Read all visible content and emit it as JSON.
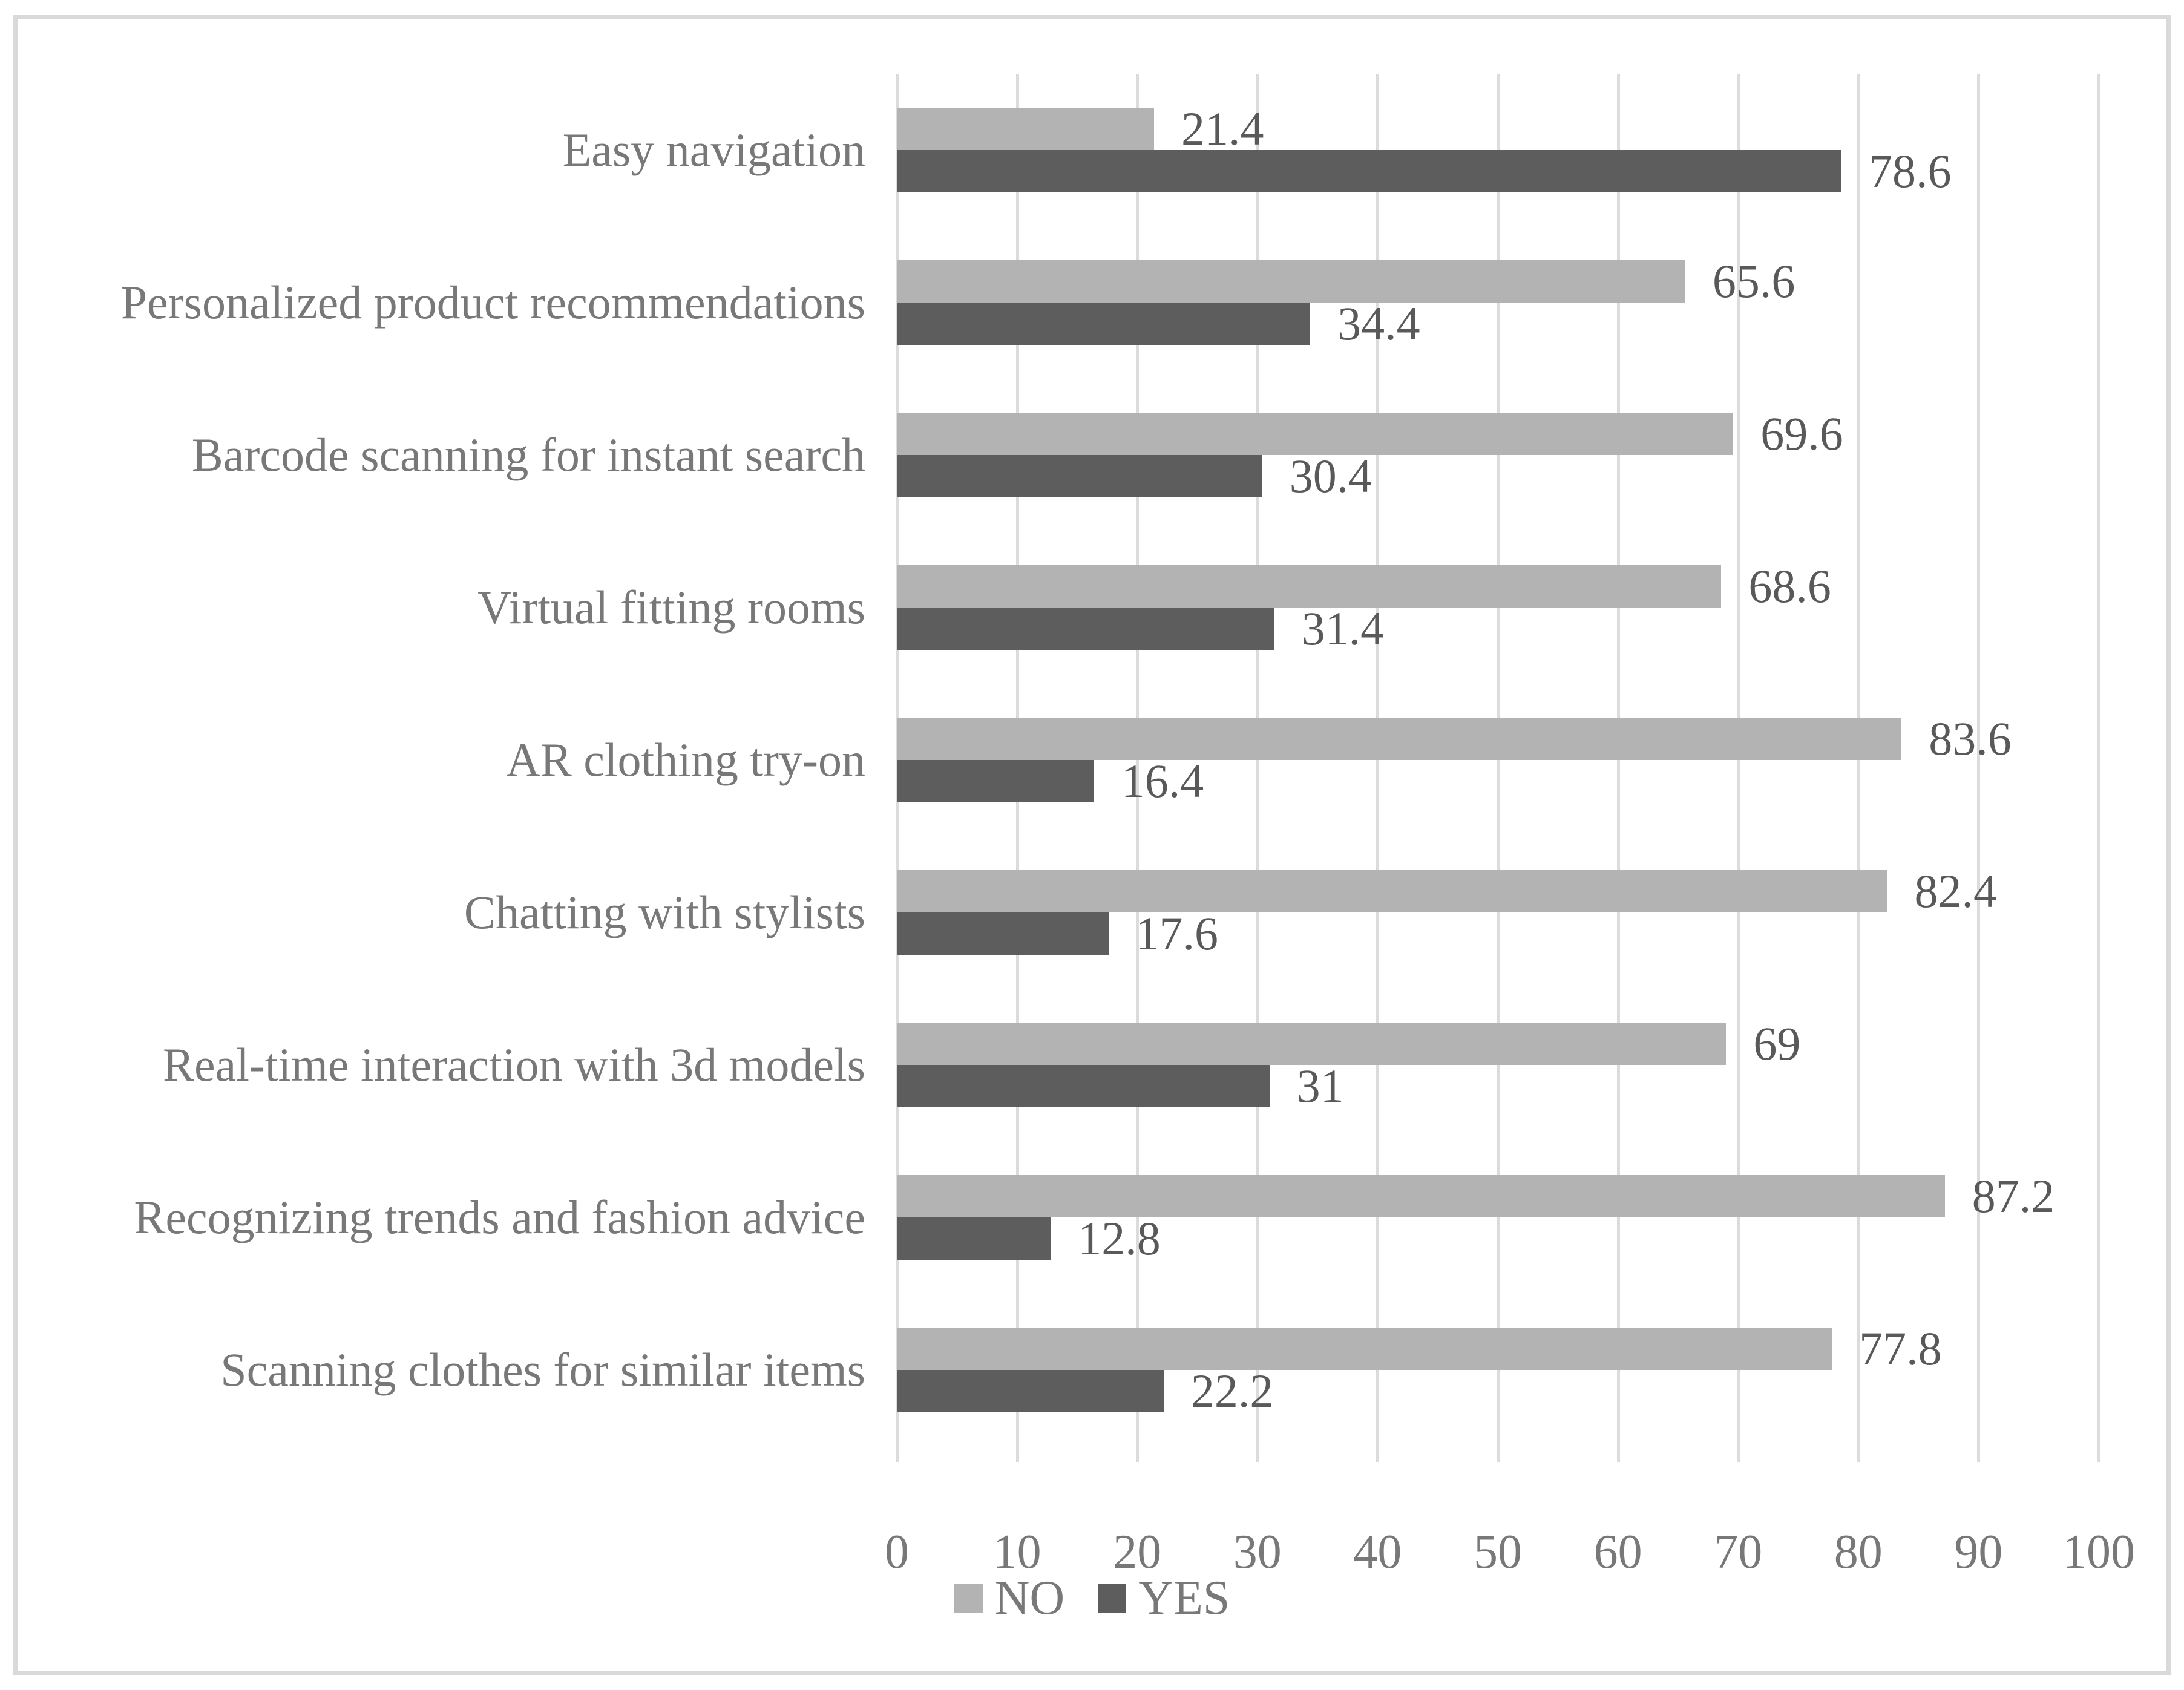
{
  "chart_data": {
    "type": "bar",
    "orientation": "horizontal",
    "title": "",
    "categories": [
      "Easy navigation",
      "Personalized product recommendations",
      "Barcode scanning for instant search",
      "Virtual fitting rooms",
      "AR clothing try-on",
      "Chatting with stylists",
      "Real-time interaction with 3d models",
      "Recognizing trends and fashion advice",
      "Scanning clothes for similar items"
    ],
    "series": [
      {
        "name": "NO",
        "color": "#b3b3b3",
        "values": [
          21.4,
          65.6,
          69.6,
          68.6,
          83.6,
          82.4,
          69,
          87.2,
          77.8
        ],
        "labels": [
          "21.4",
          "65.6",
          "69.6",
          "68.6",
          "83.6",
          "82.4",
          "69",
          "87.2",
          "77.8"
        ]
      },
      {
        "name": "YES",
        "color": "#5d5d5d",
        "values": [
          78.6,
          34.4,
          30.4,
          31.4,
          16.4,
          17.6,
          31,
          12.8,
          22.2
        ],
        "labels": [
          "78.6",
          "34.4",
          "30.4",
          "31.4",
          "16.4",
          "17.6",
          "31",
          "12.8",
          "22.2"
        ]
      }
    ],
    "x_axis": {
      "min": 0,
      "max": 100,
      "tick_step": 10,
      "ticks": [
        "0",
        "10",
        "20",
        "30",
        "40",
        "50",
        "60",
        "70",
        "80",
        "90",
        "100"
      ]
    },
    "legend": {
      "position": "bottom",
      "entries": [
        "NO",
        "YES"
      ]
    },
    "grid": true,
    "gridline_color": "#dcdcdc",
    "frame_color": "#d9d9d9",
    "category_text_color": "#787878",
    "value_text_color": "#595959"
  }
}
